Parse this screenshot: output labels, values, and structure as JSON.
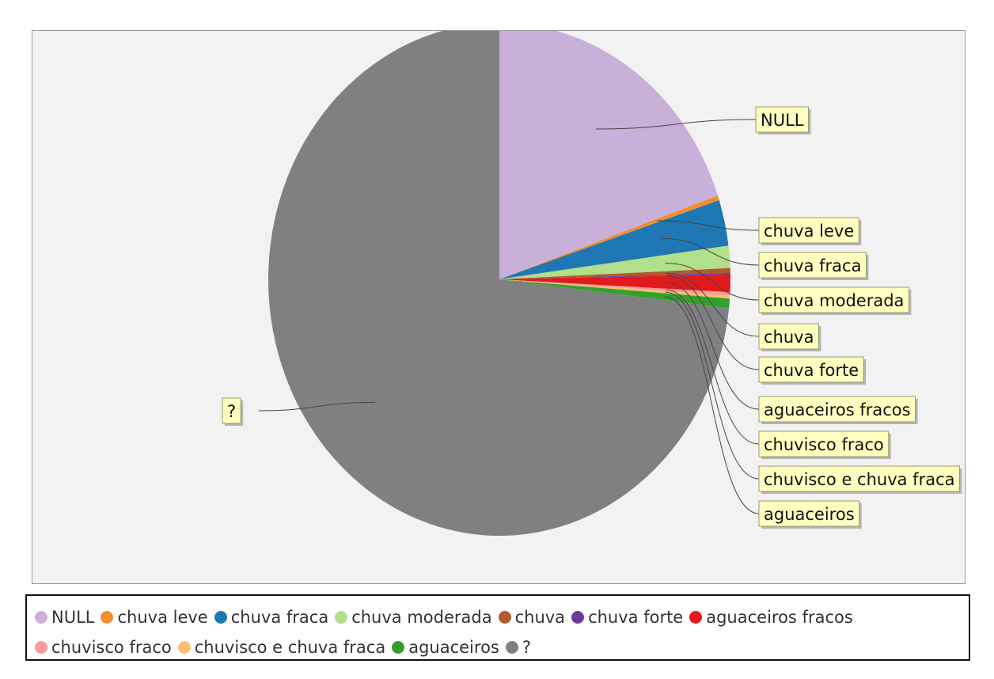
{
  "chart_data": {
    "type": "pie",
    "title": "",
    "start_angle_deg": 90,
    "direction": "clockwise",
    "legend_placement": "bottom",
    "slices": [
      {
        "label": "NULL",
        "value": 19.7,
        "color": "#c9b0d8"
      },
      {
        "label": "chuva leve",
        "value": 0.3,
        "color": "#f28e2b"
      },
      {
        "label": "chuva fraca",
        "value": 2.9,
        "color": "#1f77b4"
      },
      {
        "label": "chuva moderada",
        "value": 1.4,
        "color": "#b2df8a"
      },
      {
        "label": "chuva",
        "value": 0.3,
        "color": "#b15928"
      },
      {
        "label": "chuva forte",
        "value": 0.1,
        "color": "#6a3d9a"
      },
      {
        "label": "aguaceiros fracos",
        "value": 1.1,
        "color": "#e31a1c"
      },
      {
        "label": "chuvisco fraco",
        "value": 0.2,
        "color": "#fb9a99"
      },
      {
        "label": "chuvisco e chuva fraca",
        "value": 0.2,
        "color": "#fdbf6f"
      },
      {
        "label": "aguaceiros",
        "value": 0.6,
        "color": "#33a02c"
      },
      {
        "label": "?",
        "value": 73.2,
        "color": "#808080"
      }
    ]
  },
  "legend_rows": [
    [
      0,
      1,
      2,
      3,
      4,
      5,
      6
    ],
    [
      7,
      8,
      9,
      10
    ]
  ]
}
